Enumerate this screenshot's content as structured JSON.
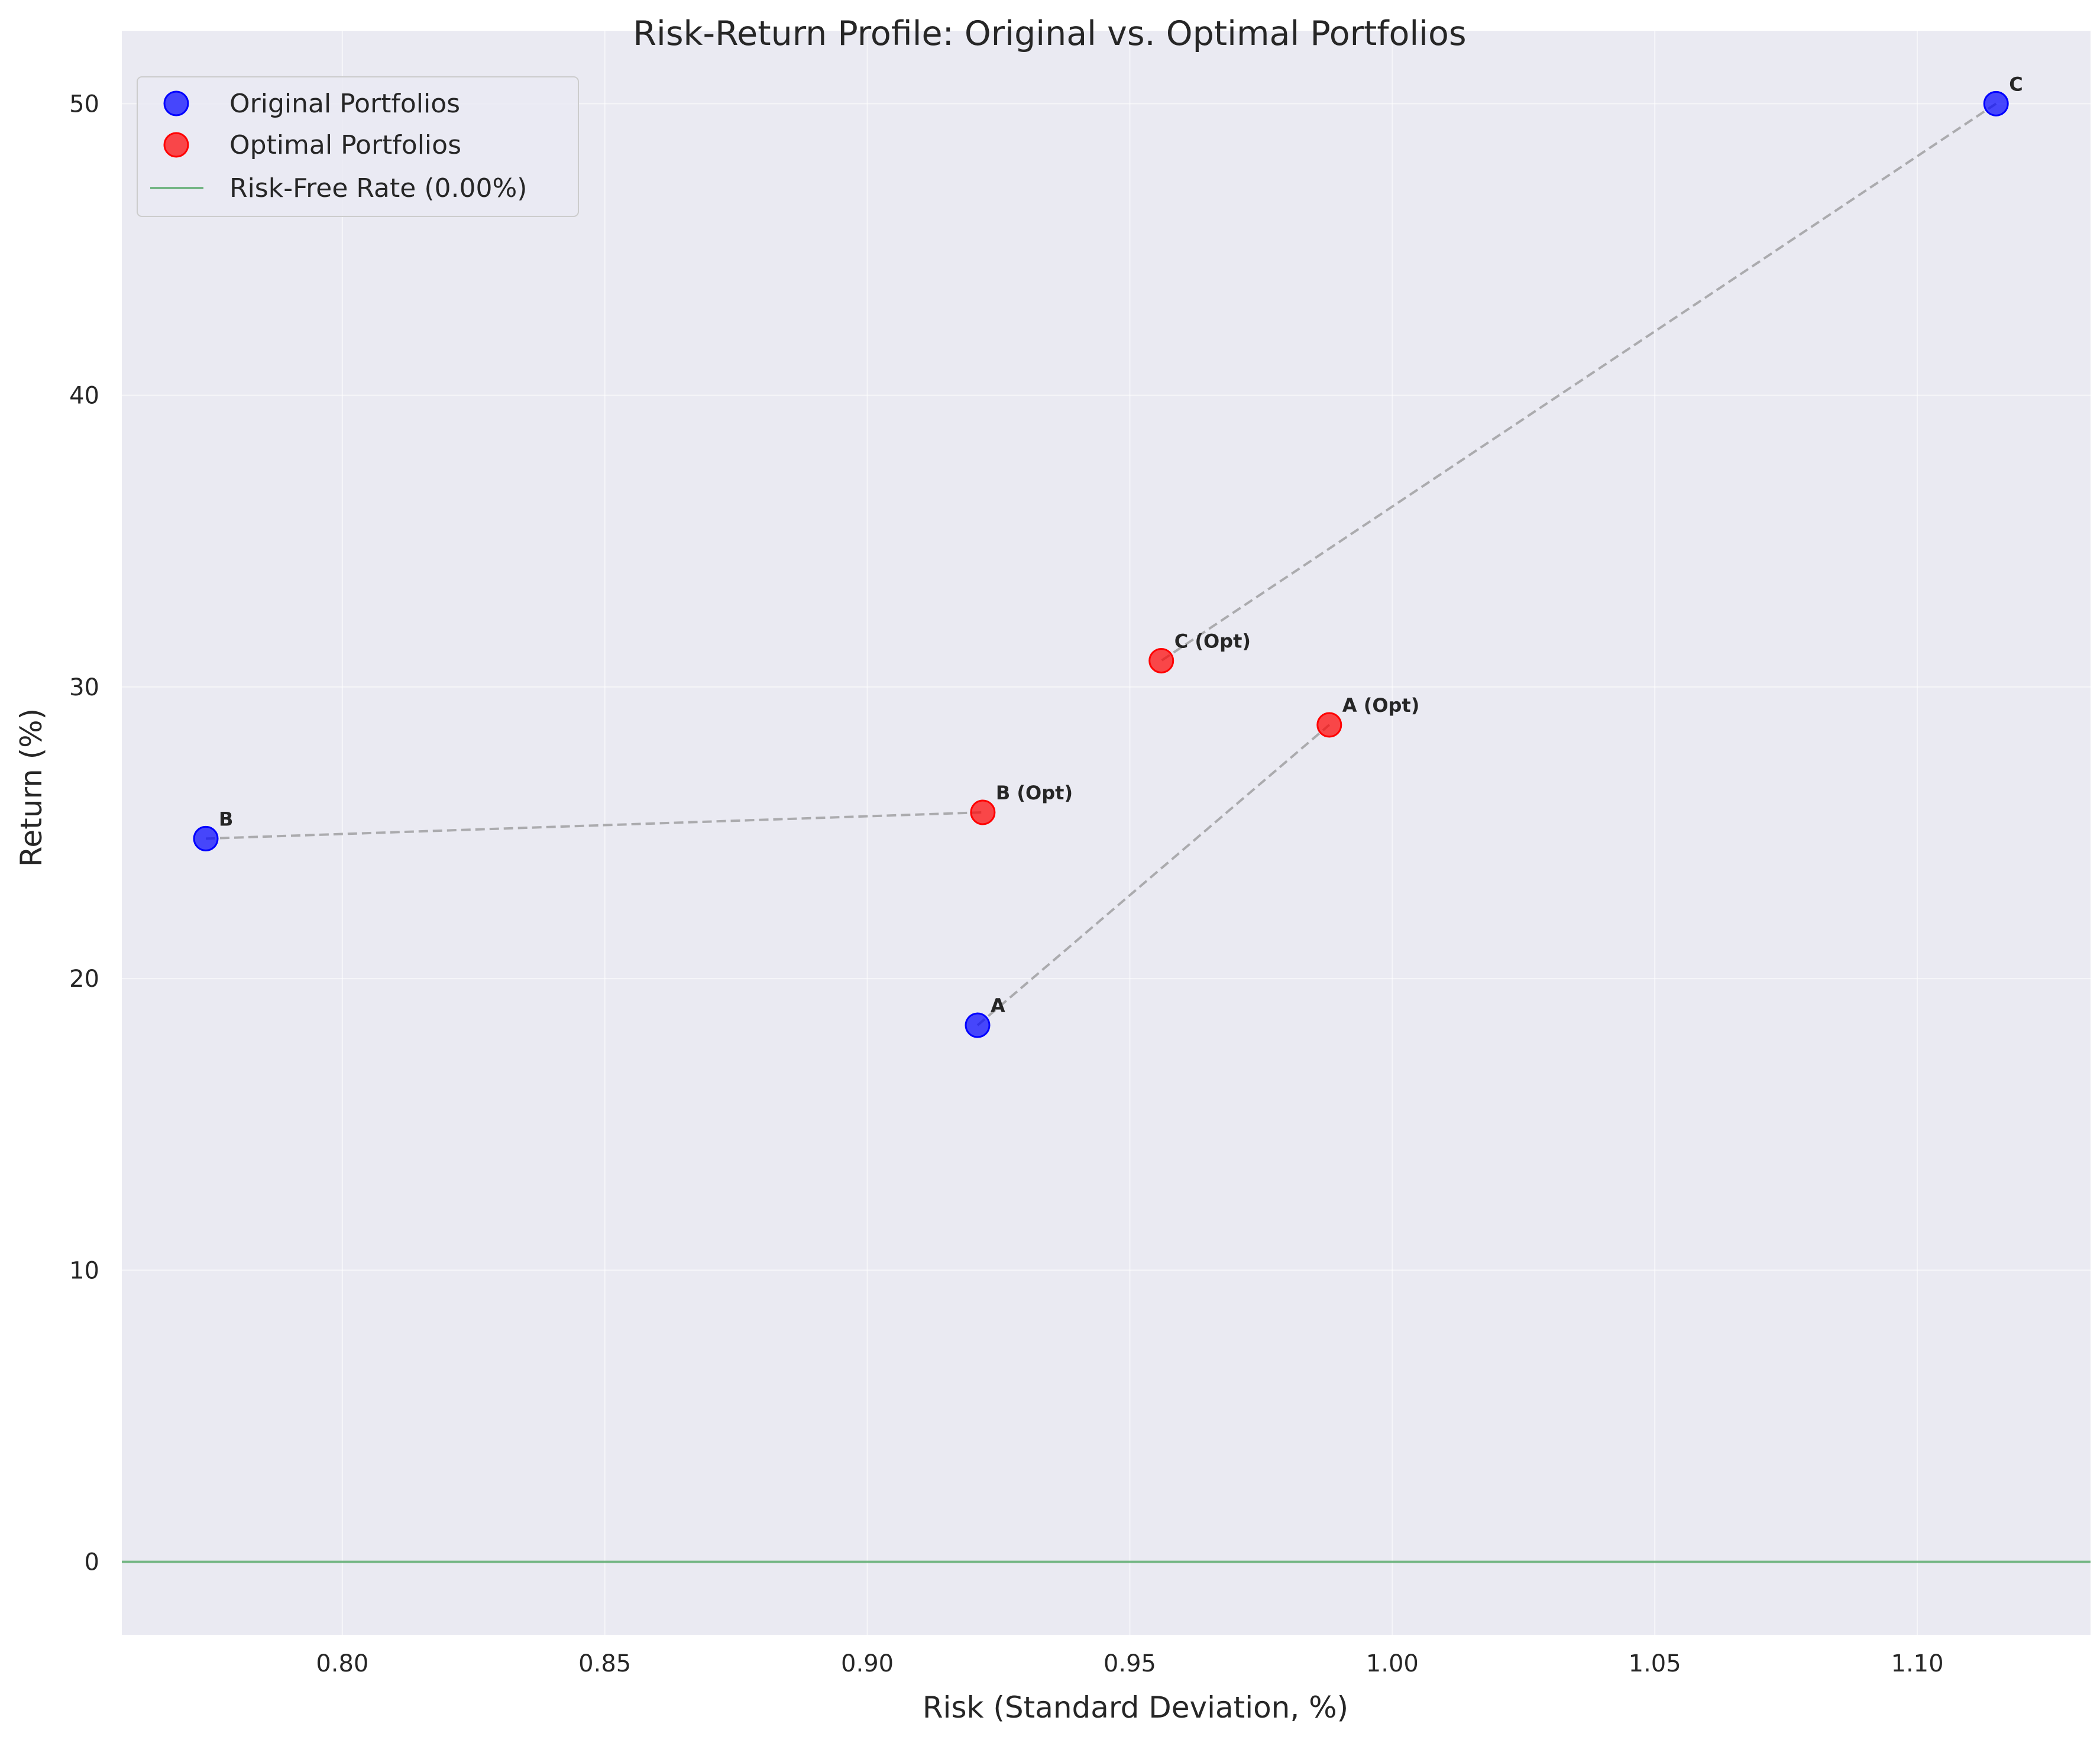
{
  "chart_data": {
    "type": "scatter",
    "title": "Risk-Return Profile: Original vs. Optimal Portfolios",
    "xlabel": "Risk (Standard Deviation, %)",
    "ylabel": "Return (%)",
    "xlim": [
      0.758,
      1.133
    ],
    "ylim": [
      -2.5,
      52.5
    ],
    "xticks": [
      0.8,
      0.85,
      0.9,
      0.95,
      1.0,
      1.05,
      1.1
    ],
    "xtick_labels": [
      "0.80",
      "0.85",
      "0.90",
      "0.95",
      "1.00",
      "1.05",
      "1.10"
    ],
    "yticks": [
      0,
      10,
      20,
      30,
      40,
      50
    ],
    "ytick_labels": [
      "0",
      "10",
      "20",
      "30",
      "40",
      "50"
    ],
    "grid": true,
    "legend_position": "top-left",
    "series": [
      {
        "name": "Original Portfolios",
        "color": "#0000ff",
        "points": [
          {
            "label": "A",
            "x": 0.921,
            "y": 18.4
          },
          {
            "label": "B",
            "x": 0.774,
            "y": 24.8
          },
          {
            "label": "C",
            "x": 1.115,
            "y": 50.0
          }
        ]
      },
      {
        "name": "Optimal Portfolios",
        "color": "#ff0000",
        "points": [
          {
            "label": "A (Opt)",
            "x": 0.988,
            "y": 28.7
          },
          {
            "label": "B (Opt)",
            "x": 0.922,
            "y": 25.7
          },
          {
            "label": "C (Opt)",
            "x": 0.956,
            "y": 30.9
          }
        ]
      }
    ],
    "connections": [
      {
        "from": "A",
        "to": "A (Opt)"
      },
      {
        "from": "B",
        "to": "B (Opt)"
      },
      {
        "from": "C",
        "to": "C (Opt)"
      }
    ],
    "risk_free_rate": {
      "name": "Risk-Free Rate (0.00%)",
      "value": 0.0,
      "color": "#55a868"
    }
  }
}
